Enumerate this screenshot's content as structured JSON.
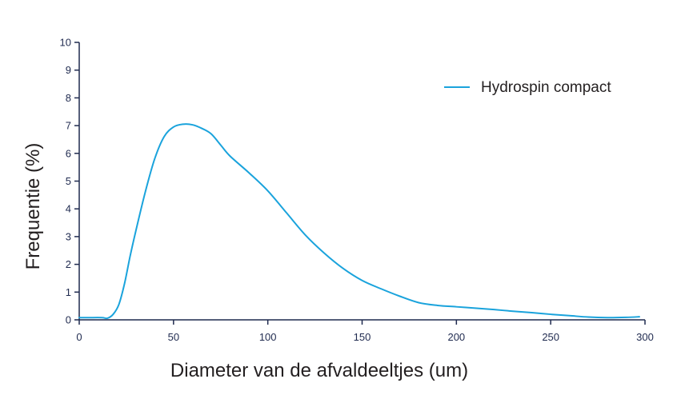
{
  "chart_data": {
    "type": "line",
    "title": "",
    "xlabel": "Diameter van de afvaldeeltjes (um)",
    "ylabel": "Frequentie (%)",
    "xlim": [
      0,
      300
    ],
    "ylim": [
      0,
      10
    ],
    "x_ticks": [
      "0",
      "50",
      "100",
      "150",
      "200",
      "250",
      "300"
    ],
    "y_ticks": [
      "0",
      "1",
      "2",
      "3",
      "4",
      "5",
      "6",
      "7",
      "8",
      "9",
      "10"
    ],
    "grid": false,
    "legend_position": "top-right",
    "colors": {
      "series": "#1aa3dc",
      "axis": "#1f2a4f"
    },
    "series": [
      {
        "name": "Hydrospin compact",
        "x": [
          0,
          5,
          12,
          15,
          18,
          21,
          24,
          27,
          30,
          35,
          40,
          45,
          50,
          55,
          60,
          65,
          70,
          75,
          80,
          90,
          100,
          110,
          120,
          130,
          140,
          150,
          160,
          170,
          180,
          190,
          200,
          210,
          220,
          230,
          240,
          250,
          260,
          270,
          280,
          290,
          297
        ],
        "y": [
          0.08,
          0.08,
          0.08,
          0.06,
          0.2,
          0.55,
          1.3,
          2.3,
          3.2,
          4.6,
          5.8,
          6.6,
          6.95,
          7.05,
          7.03,
          6.9,
          6.7,
          6.3,
          5.9,
          5.3,
          4.65,
          3.85,
          3.05,
          2.4,
          1.85,
          1.42,
          1.12,
          0.85,
          0.62,
          0.52,
          0.47,
          0.42,
          0.37,
          0.31,
          0.26,
          0.2,
          0.15,
          0.1,
          0.08,
          0.09,
          0.11
        ]
      }
    ]
  }
}
